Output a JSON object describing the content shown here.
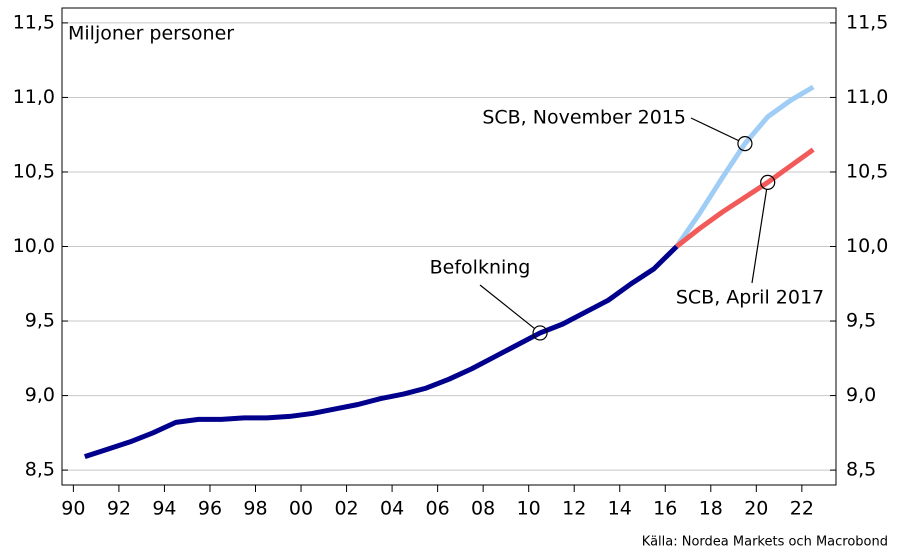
{
  "chart_data": {
    "type": "line",
    "y_label": "Miljoner personer",
    "source": "Källa: Nordea Markets och Macrobond",
    "xlim": [
      1989.5,
      2023.5
    ],
    "xticks": [
      {
        "value": 1990,
        "label": "90"
      },
      {
        "value": 1992,
        "label": "92"
      },
      {
        "value": 1994,
        "label": "94"
      },
      {
        "value": 1996,
        "label": "96"
      },
      {
        "value": 1998,
        "label": "98"
      },
      {
        "value": 2000,
        "label": "00"
      },
      {
        "value": 2002,
        "label": "02"
      },
      {
        "value": 2004,
        "label": "04"
      },
      {
        "value": 2006,
        "label": "06"
      },
      {
        "value": 2008,
        "label": "08"
      },
      {
        "value": 2010,
        "label": "10"
      },
      {
        "value": 2012,
        "label": "12"
      },
      {
        "value": 2014,
        "label": "14"
      },
      {
        "value": 2016,
        "label": "16"
      },
      {
        "value": 2018,
        "label": "18"
      },
      {
        "value": 2020,
        "label": "20"
      },
      {
        "value": 2022,
        "label": "22"
      }
    ],
    "ylim": [
      8.4,
      11.6
    ],
    "yticks": [
      {
        "value": 8.5,
        "label": "8,5"
      },
      {
        "value": 9.0,
        "label": "9,0"
      },
      {
        "value": 9.5,
        "label": "9,5"
      },
      {
        "value": 10.0,
        "label": "10,0"
      },
      {
        "value": 10.5,
        "label": "10,5"
      },
      {
        "value": 11.0,
        "label": "11,0"
      },
      {
        "value": 11.5,
        "label": "11,5"
      }
    ],
    "grid": true,
    "series": [
      {
        "name": "SCB, November 2015",
        "color": "#9fcdf5",
        "x": [
          2016.5,
          2017.5,
          2018.5,
          2019.5,
          2020.5,
          2021.5,
          2022.5
        ],
        "values": [
          10.0,
          10.22,
          10.46,
          10.69,
          10.87,
          10.98,
          11.07
        ]
      },
      {
        "name": "SCB, April 2017",
        "color": "#f25a5a",
        "x": [
          2016.5,
          2017.5,
          2018.5,
          2019.5,
          2020.5,
          2021.5,
          2022.5
        ],
        "values": [
          10.0,
          10.12,
          10.23,
          10.33,
          10.43,
          10.54,
          10.65
        ]
      },
      {
        "name": "Befolkning",
        "color": "#00008c",
        "x": [
          1990.5,
          1991.5,
          1992.5,
          1993.5,
          1994.5,
          1995.5,
          1996.5,
          1997.5,
          1998.5,
          1999.5,
          2000.5,
          2001.5,
          2002.5,
          2003.5,
          2004.5,
          2005.5,
          2006.5,
          2007.5,
          2008.5,
          2009.5,
          2010.5,
          2011.5,
          2012.5,
          2013.5,
          2014.5,
          2015.5,
          2016.5
        ],
        "values": [
          8.59,
          8.64,
          8.69,
          8.75,
          8.82,
          8.84,
          8.84,
          8.85,
          8.85,
          8.86,
          8.88,
          8.91,
          8.94,
          8.98,
          9.01,
          9.05,
          9.11,
          9.18,
          9.26,
          9.34,
          9.42,
          9.48,
          9.56,
          9.64,
          9.75,
          9.85,
          10.0
        ]
      }
    ]
  }
}
